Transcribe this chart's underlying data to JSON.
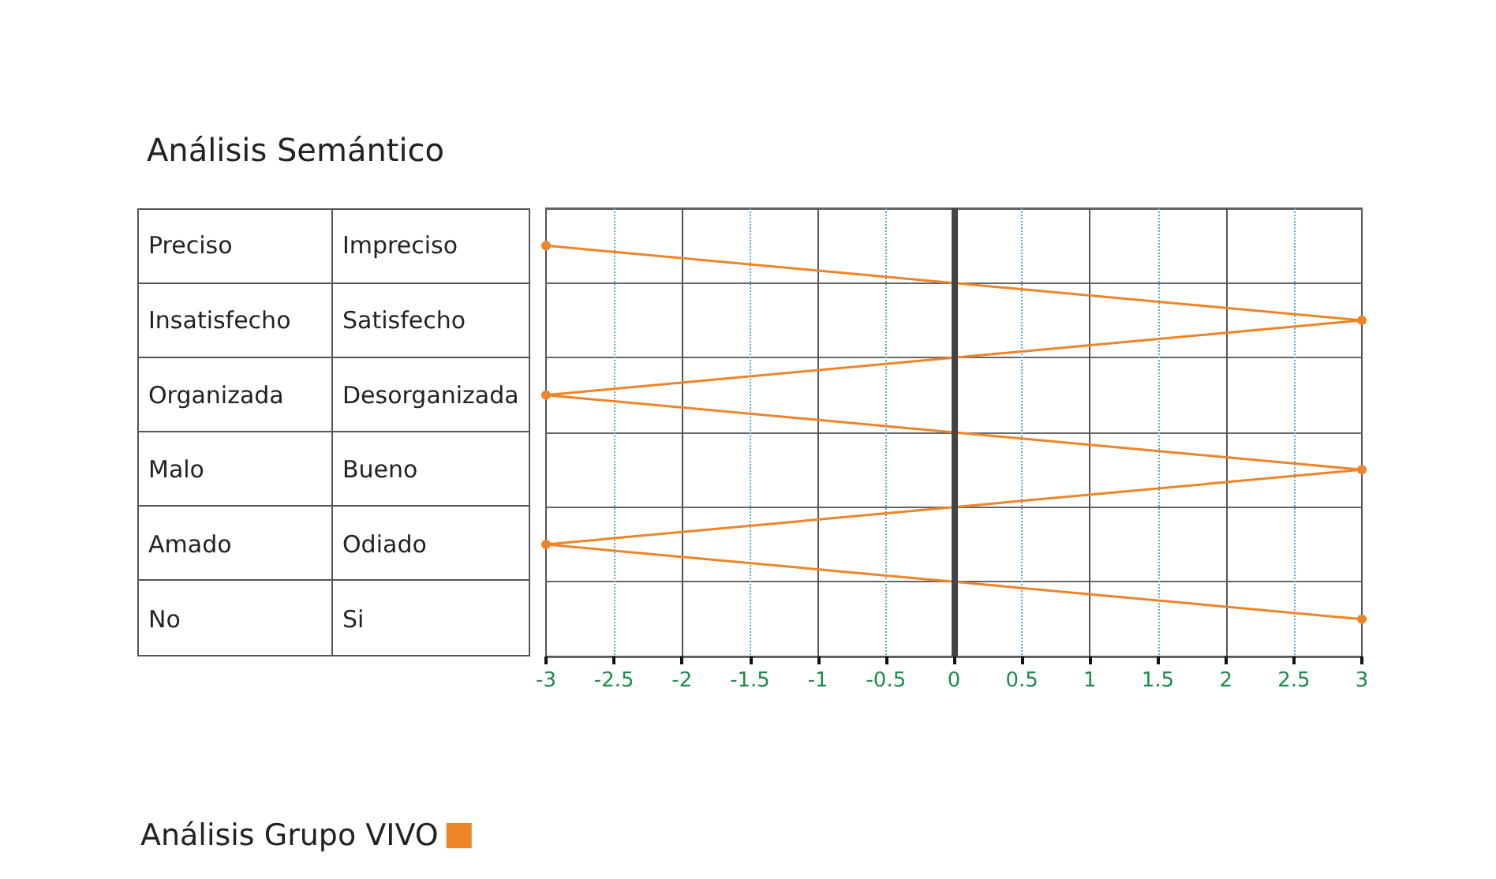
{
  "chart_data": {
    "type": "line",
    "orientation": "horizontal",
    "title": "Análisis Semántico",
    "categories": [
      "Impreciso",
      "Satisfecho",
      "Desorganizada",
      "Bueno",
      "Odiado",
      "Si"
    ],
    "y2_categories": [
      "Preciso",
      "Insatisfecho",
      "Organizada",
      "Malo",
      "Amado",
      "No"
    ],
    "series": [
      {
        "name": "Análisis Grupo VIVO",
        "color": "#ee8428",
        "values": [
          -3,
          3,
          -3,
          3,
          -3,
          3
        ]
      }
    ],
    "xlim": [
      -3,
      3
    ],
    "xticks": [
      -3,
      -2.5,
      -2,
      -1.5,
      -1,
      -0.5,
      0,
      0.5,
      1,
      1.5,
      2,
      2.5,
      3
    ],
    "grid": true,
    "marker": "circle",
    "line_style": "solid",
    "legend": "bottom left",
    "ref_lines": [
      {
        "axis": "x",
        "value": 0,
        "color": "#444444"
      }
    ]
  }
}
